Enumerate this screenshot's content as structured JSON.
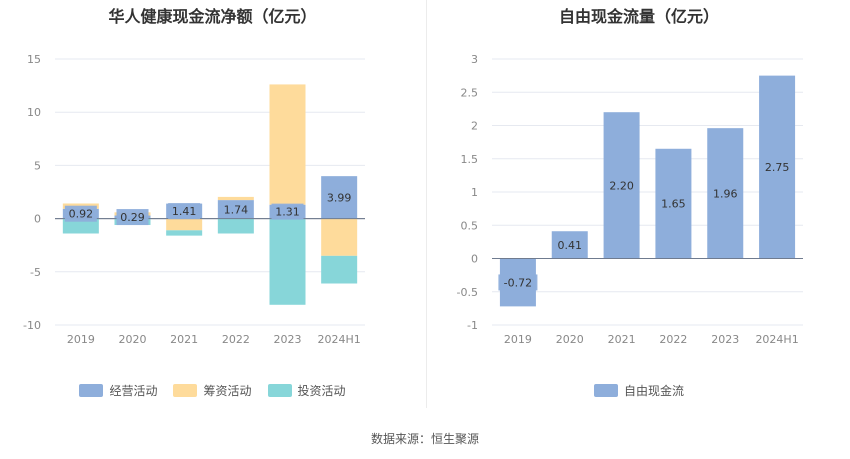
{
  "source_label": "数据来源：恒生聚源",
  "chart_data": [
    {
      "type": "bar",
      "stacked": true,
      "title": "华人健康现金流净额（亿元）",
      "categories": [
        "2019",
        "2020",
        "2021",
        "2022",
        "2023",
        "2024H1"
      ],
      "ylim": [
        -10,
        15
      ],
      "yticks": [
        -10,
        -5,
        0,
        5,
        10,
        15
      ],
      "grid": true,
      "legend_position": "bottom",
      "series": [
        {
          "name": "经营活动",
          "color": "#8eaedb",
          "values": [
            0.92,
            0.29,
            1.41,
            1.74,
            1.31,
            3.99
          ],
          "labels": [
            "0.92",
            "0.29",
            "1.41",
            "1.74",
            "1.31",
            "3.99"
          ]
        },
        {
          "name": "筹资活动",
          "color": "#fedb9b",
          "values": [
            0.5,
            0.3,
            -1.1,
            0.3,
            11.3,
            -3.5
          ]
        },
        {
          "name": "投资活动",
          "color": "#87d6d9",
          "values": [
            -1.4,
            -0.6,
            -0.5,
            -1.4,
            -8.1,
            -2.6
          ]
        }
      ]
    },
    {
      "type": "bar",
      "title": "自由现金流量（亿元）",
      "categories": [
        "2019",
        "2020",
        "2021",
        "2022",
        "2023",
        "2024H1"
      ],
      "ylim": [
        -1,
        3
      ],
      "yticks": [
        -1,
        -0.5,
        0,
        0.5,
        1,
        1.5,
        2,
        2.5,
        3
      ],
      "grid": true,
      "legend_position": "bottom",
      "series": [
        {
          "name": "自由现金流",
          "color": "#8eaedb",
          "values": [
            -0.72,
            0.41,
            2.2,
            1.65,
            1.96,
            2.75
          ],
          "labels": [
            "-0.72",
            "0.41",
            "2.20",
            "1.65",
            "1.96",
            "2.75"
          ]
        }
      ]
    }
  ]
}
